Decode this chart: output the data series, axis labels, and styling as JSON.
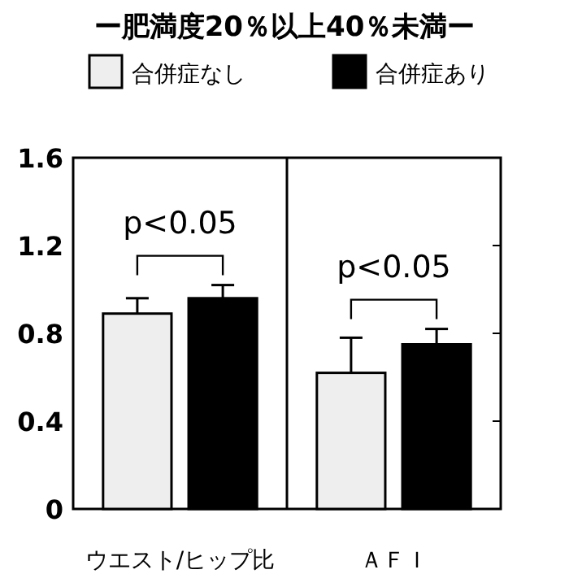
{
  "chart_data": {
    "type": "bar",
    "title": "ー肥満度20％以上40％未満ー",
    "legend": "top",
    "categories": [
      "ウエスト/ヒップ比",
      "ＡＦＩ"
    ],
    "ylim": [
      0,
      1.6
    ],
    "yticks": [
      0,
      0.4,
      0.8,
      1.2,
      1.6
    ],
    "annotations": [
      "p<0.05",
      "p<0.05"
    ],
    "series": [
      {
        "name": "合併症なし",
        "color": "#eeeeee",
        "values": [
          0.89,
          0.62
        ],
        "errors": [
          0.07,
          0.16
        ]
      },
      {
        "name": "合併症あり",
        "color": "#000000",
        "values": [
          0.96,
          0.75
        ],
        "errors": [
          0.06,
          0.07
        ]
      }
    ]
  }
}
